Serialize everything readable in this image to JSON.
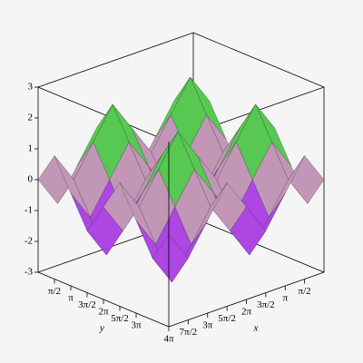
{
  "chart_data": {
    "type": "surface3d",
    "x_label": "x",
    "y_label": "y",
    "xlim": [
      0,
      12.566
    ],
    "ylim": [
      0,
      12.566
    ],
    "zlim": [
      -3,
      3
    ],
    "xticks": [
      {
        "value": 1.571,
        "label": "π/2"
      },
      {
        "value": 3.142,
        "label": "π"
      },
      {
        "value": 4.712,
        "label": "3π/2"
      },
      {
        "value": 6.283,
        "label": "2π"
      },
      {
        "value": 7.854,
        "label": "5π/2"
      },
      {
        "value": 9.425,
        "label": "3π"
      },
      {
        "value": 10.996,
        "label": "7π/2"
      },
      {
        "value": 12.566,
        "label": "4π"
      }
    ],
    "yticks": [
      {
        "value": 1.571,
        "label": "π/2"
      },
      {
        "value": 3.142,
        "label": "π"
      },
      {
        "value": 4.712,
        "label": "3π/2"
      },
      {
        "value": 6.283,
        "label": "2π"
      },
      {
        "value": 7.854,
        "label": "5π/2"
      },
      {
        "value": 9.425,
        "label": "3π"
      }
    ],
    "zticks": [
      3,
      2,
      1,
      0,
      -1,
      -2,
      -3
    ],
    "x": [
      0,
      1.571,
      3.142,
      4.712,
      6.283,
      7.854,
      9.425,
      10.996,
      12.566
    ],
    "y": [
      0,
      1.571,
      3.142,
      4.712,
      6.283,
      7.854,
      9.425,
      10.996,
      12.566
    ],
    "z": [
      [
        0,
        1,
        0,
        -1,
        0,
        1,
        0,
        -1,
        0
      ],
      [
        1,
        2,
        1,
        0,
        1,
        2,
        1,
        0,
        1
      ],
      [
        0,
        1,
        0,
        -1,
        0,
        1,
        0,
        -1,
        0
      ],
      [
        -1,
        0,
        -1,
        -2,
        -1,
        0,
        -1,
        -2,
        -1
      ],
      [
        0,
        1,
        0,
        -1,
        0,
        1,
        0,
        -1,
        0
      ],
      [
        1,
        2,
        1,
        0,
        1,
        2,
        1,
        0,
        1
      ],
      [
        0,
        1,
        0,
        -1,
        0,
        1,
        0,
        -1,
        0
      ],
      [
        -1,
        0,
        -1,
        -2,
        -1,
        0,
        -1,
        -2,
        -1
      ],
      [
        0,
        1,
        0,
        -1,
        0,
        1,
        0,
        -1,
        0
      ]
    ]
  }
}
